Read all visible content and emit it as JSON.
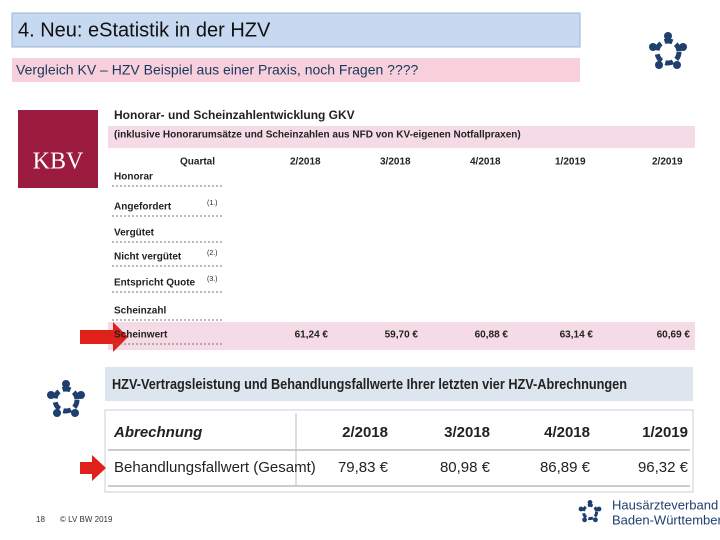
{
  "header": {
    "title": "4. Neu: eStatistik in der HZV",
    "subtitle": "Vergleich KV – HZV  Beispiel aus einer Praxis, noch Fragen ????"
  },
  "logo": {
    "text": "KBV"
  },
  "table1": {
    "title": "Honorar- und Scheinzahlentwicklung GKV",
    "subtitle": "(inklusive Honorarumsätze und Scheinzahlen aus NFD von KV-eigenen Notfallpraxen)",
    "columns": [
      "Quartal",
      "2/2018",
      "3/2018",
      "4/2018",
      "1/2019",
      "2/2019"
    ],
    "rows": [
      {
        "label": "Honorar"
      },
      {
        "label": "Angefordert",
        "note": "(1.)"
      },
      {
        "label": "Vergütet"
      },
      {
        "label": "Nicht vergütet",
        "note": "(2.)"
      },
      {
        "label": "Entspricht Quote",
        "note": "(3.)"
      },
      {
        "label": "Scheinzahl"
      },
      {
        "label": "Scheinwert",
        "values": [
          "61,24 €",
          "59,70 €",
          "60,88 €",
          "63,14 €",
          "60,69 €"
        ]
      }
    ]
  },
  "table2": {
    "title": "HZV-Vertragsleistung und Behandlungsfallwerte Ihrer letzten vier HZV-Abrechnungen",
    "columns": [
      "Abrechnung",
      "2/2018",
      "3/2018",
      "4/2018",
      "1/2019"
    ],
    "rows": [
      {
        "label": "Behandlungsfallwert (Gesamt)",
        "values": [
          "79,83 €",
          "80,98 €",
          "86,89 €",
          "96,32 €"
        ]
      }
    ]
  },
  "footer": {
    "page": "18",
    "copyright": "© LV BW 2019",
    "org": [
      "Hausärzteverband",
      "Baden-Württemberg"
    ]
  }
}
